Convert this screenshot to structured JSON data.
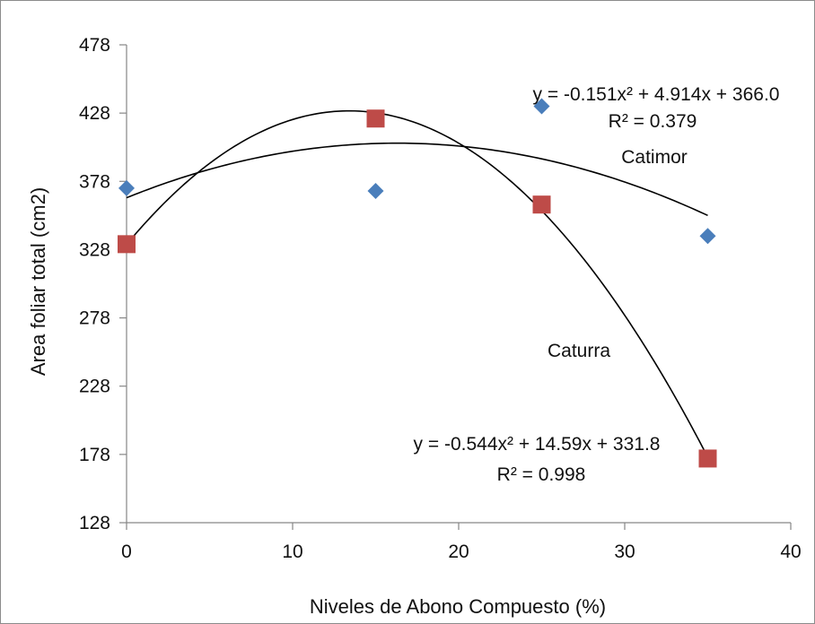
{
  "chart_data": {
    "type": "scatter",
    "xlabel": "Niveles de Abono Compuesto (%)",
    "ylabel": "Area foliar total (cm2)",
    "xlim": [
      0,
      40
    ],
    "ylim": [
      128,
      478
    ],
    "xticks": [
      0,
      10,
      20,
      30,
      40
    ],
    "yticks": [
      128,
      178,
      228,
      278,
      328,
      378,
      428,
      478
    ],
    "grid": false,
    "series": [
      {
        "name": "Catimor",
        "marker": "diamond",
        "color": "#4a7ebb",
        "x": [
          0,
          15,
          25,
          35
        ],
        "y": [
          373,
          371,
          433,
          338
        ],
        "trendline": {
          "type": "polynomial",
          "coefficients": [
            -0.151,
            4.914,
            366.0
          ],
          "equation": "y = -0.151x² + 4.914x + 366.0",
          "r2": "R² = 0.379"
        }
      },
      {
        "name": "Caturra",
        "marker": "square",
        "color": "#be4b48",
        "x": [
          0,
          15,
          25,
          35
        ],
        "y": [
          332,
          424,
          361,
          175
        ],
        "trendline": {
          "type": "polynomial",
          "coefficients": [
            -0.544,
            14.59,
            331.8
          ],
          "equation": "y = -0.544x² + 14.59x + 331.8",
          "r2": "R² = 0.998"
        }
      }
    ]
  }
}
